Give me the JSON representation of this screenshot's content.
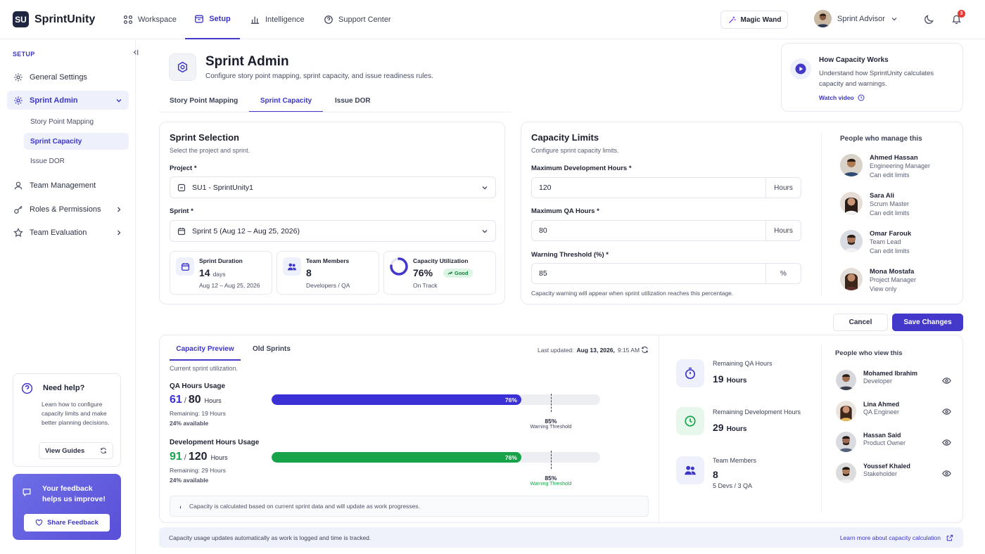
{
  "app": {
    "logo_mark": "SU",
    "name": "SprintUnity"
  },
  "nav": {
    "workspace": "Workspace",
    "setup": "Setup",
    "intelligence": "Intelligence",
    "support": "Support Center",
    "magic_wand": "Magic Wand",
    "advisor": "Sprint Advisor",
    "notif_count": "3"
  },
  "sidebar": {
    "section": "SETUP",
    "general": "General Settings",
    "sprint_admin": "Sprint Admin",
    "sub": [
      "Story Point Mapping",
      "Sprint Capacity",
      "Issue DOR"
    ],
    "team_mgmt": "Team Management",
    "roles": "Roles & Permissions",
    "team_eval": "Team Evaluation",
    "help": {
      "title": "Need help?",
      "text": "Learn how to configure capacity limits and make better planning decisions.",
      "button": "View Guides"
    },
    "feedback": {
      "text": "Your feedback helps us improve!",
      "button": "Share Feedback"
    }
  },
  "page": {
    "title": "Sprint Admin",
    "subtitle": "Configure story point mapping, sprint capacity, and issue readiness rules.",
    "tabs": [
      "Story Point Mapping",
      "Sprint Capacity",
      "Issue DOR"
    ]
  },
  "how_card": {
    "title": "How Capacity Works",
    "text": "Understand how SprintUnity calculates capacity and warnings.",
    "link": "Watch video"
  },
  "selection": {
    "title": "Sprint Selection",
    "subtitle": "Select the project and sprint.",
    "project_label": "Project *",
    "project_value": "SU1 - SprintUnity1",
    "sprint_label": "Sprint *",
    "sprint_value": "Sprint 5 (Aug 12 – Aug 25, 2026)",
    "duration": {
      "label": "Sprint Duration",
      "value": "14",
      "unit": "days",
      "range": "Aug 12 – Aug 25, 2026"
    },
    "members": {
      "label": "Team Members",
      "value": "8",
      "sub": "Developers / QA"
    },
    "utilization": {
      "label": "Capacity Utilization",
      "value": "76%",
      "percent": 76,
      "badge": "Good",
      "sub": "On Track"
    }
  },
  "limits": {
    "title": "Capacity Limits",
    "subtitle": "Configure sprint capacity limits.",
    "dev_label": "Maximum Development Hours *",
    "dev_value": "120",
    "dev_unit": "Hours",
    "qa_label": "Maximum QA Hours *",
    "qa_value": "80",
    "qa_unit": "Hours",
    "warn_label": "Warning Threshold (%) *",
    "warn_value": "85",
    "warn_unit": "%",
    "note": "Capacity warning will appear when sprint utilization reaches this percentage."
  },
  "managers": {
    "title": "People who manage this",
    "people": [
      {
        "name": "Ahmed Hassan",
        "role": "Engineering Manager",
        "access": "Can edit limits"
      },
      {
        "name": "Sara Ali",
        "role": "Scrum Master",
        "access": "Can edit limits"
      },
      {
        "name": "Omar Farouk",
        "role": "Team Lead",
        "access": "Can edit limits"
      },
      {
        "name": "Mona Mostafa",
        "role": "Project Manager",
        "access": "View only"
      }
    ]
  },
  "actions": {
    "cancel": "Cancel",
    "save": "Save Changes"
  },
  "preview": {
    "tabs": [
      "Capacity Preview",
      "Old Sprints"
    ],
    "updated_prefix": "Last updated:",
    "updated_date": "Aug 13, 2026,",
    "updated_time": "9:15 AM",
    "subtitle": "Current sprint utilization.",
    "qa": {
      "title": "QA Hours Usage",
      "used": "61",
      "sep": "/",
      "total": "80",
      "unit": "Hours",
      "remaining": "Remaining: 19 Hours",
      "available": "24% available",
      "percent_label": "76%",
      "percent": 76,
      "threshold_label": "85%",
      "threshold_text": "Warning Threshold",
      "threshold": 85
    },
    "dev": {
      "title": "Development Hours Usage",
      "used": "91",
      "sep": "/",
      "total": "120",
      "unit": "Hours",
      "remaining": "Remaining: 29 Hours",
      "available": "24% available",
      "percent_label": "76%",
      "percent": 76,
      "threshold_label": "85%",
      "threshold_text": "Warning Threshold",
      "threshold": 85
    },
    "info": "Capacity is calculated based on current sprint data and will update as work progresses."
  },
  "summary": {
    "qa": {
      "label": "Remaining QA Hours",
      "value": "19",
      "unit": "Hours"
    },
    "dev": {
      "label": "Remaining Development Hours",
      "value": "29",
      "unit": "Hours"
    },
    "members": {
      "label": "Team Members",
      "value": "8",
      "sub": "5 Devs / 3 QA"
    }
  },
  "viewers": {
    "title": "People who view this",
    "people": [
      {
        "name": "Mohamed Ibrahim",
        "role": "Developer"
      },
      {
        "name": "Lina Ahmed",
        "role": "QA Engineer"
      },
      {
        "name": "Hassan Said",
        "role": "Product Owner"
      },
      {
        "name": "Youssef Khaled",
        "role": "Stakeholder"
      }
    ]
  },
  "footer": {
    "text": "Capacity usage updates automatically as work is logged and time is tracked.",
    "link": "Learn more about capacity calculation"
  },
  "colors": {
    "accent": "#4338ca",
    "qa_bar": "#3b2fd6",
    "dev_bar": "#16a34a",
    "warning": "#16a34a",
    "badge": "#e53935"
  }
}
